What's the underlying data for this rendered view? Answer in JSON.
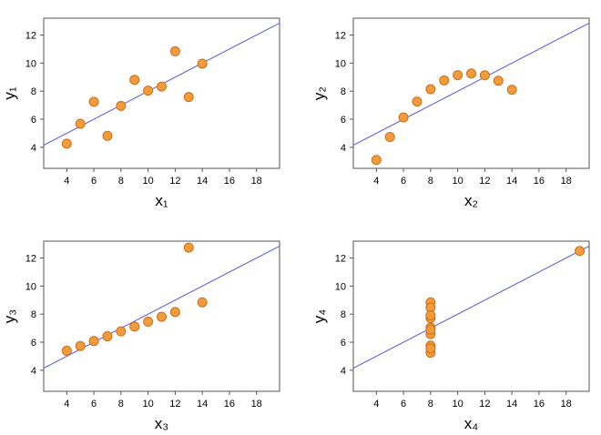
{
  "chart_data": [
    {
      "type": "scatter",
      "xlabel": "x₁",
      "ylabel": "y₁",
      "color": "#f39b3a",
      "x": [
        10,
        8,
        13,
        9,
        11,
        14,
        6,
        4,
        12,
        7,
        5
      ],
      "values": [
        8.04,
        6.95,
        7.58,
        8.81,
        8.33,
        9.96,
        7.24,
        4.26,
        10.84,
        4.82,
        5.68
      ],
      "xlim": [
        2.3,
        19.7
      ],
      "ylim": [
        2.5,
        13.2
      ],
      "xticks": [
        4,
        6,
        8,
        10,
        12,
        14,
        16,
        18
      ],
      "yticks": [
        4,
        6,
        8,
        10,
        12
      ],
      "fit_line": {
        "intercept": 3,
        "slope": 0.5,
        "color": "#5555dd"
      }
    },
    {
      "type": "scatter",
      "xlabel": "x₂",
      "ylabel": "y₂",
      "color": "#f39b3a",
      "x": [
        10,
        8,
        13,
        9,
        11,
        14,
        6,
        4,
        12,
        7,
        5
      ],
      "values": [
        9.14,
        8.14,
        8.74,
        8.77,
        9.26,
        8.1,
        6.13,
        3.1,
        9.13,
        7.26,
        4.74
      ],
      "xlim": [
        2.3,
        19.7
      ],
      "ylim": [
        2.5,
        13.2
      ],
      "xticks": [
        4,
        6,
        8,
        10,
        12,
        14,
        16,
        18
      ],
      "yticks": [
        4,
        6,
        8,
        10,
        12
      ],
      "fit_line": {
        "intercept": 3,
        "slope": 0.5,
        "color": "#5555dd"
      }
    },
    {
      "type": "scatter",
      "xlabel": "x₃",
      "ylabel": "y₃",
      "color": "#f39b3a",
      "x": [
        10,
        8,
        13,
        9,
        11,
        14,
        6,
        4,
        12,
        7,
        5
      ],
      "values": [
        7.46,
        6.77,
        12.74,
        7.11,
        7.81,
        8.84,
        6.08,
        5.39,
        8.15,
        6.42,
        5.73
      ],
      "xlim": [
        2.3,
        19.7
      ],
      "ylim": [
        2.5,
        13.2
      ],
      "xticks": [
        4,
        6,
        8,
        10,
        12,
        14,
        16,
        18
      ],
      "yticks": [
        4,
        6,
        8,
        10,
        12
      ],
      "fit_line": {
        "intercept": 3,
        "slope": 0.5,
        "color": "#5555dd"
      }
    },
    {
      "type": "scatter",
      "xlabel": "x₄",
      "ylabel": "y₄",
      "color": "#f39b3a",
      "x": [
        8,
        8,
        8,
        8,
        8,
        8,
        8,
        19,
        8,
        8,
        8
      ],
      "values": [
        6.58,
        5.76,
        7.71,
        8.84,
        8.47,
        7.04,
        5.25,
        12.5,
        5.56,
        7.91,
        6.89
      ],
      "xlim": [
        2.3,
        19.7
      ],
      "ylim": [
        2.5,
        13.2
      ],
      "xticks": [
        4,
        6,
        8,
        10,
        12,
        14,
        16,
        18
      ],
      "yticks": [
        4,
        6,
        8,
        10,
        12
      ],
      "fit_line": {
        "intercept": 3,
        "slope": 0.5,
        "color": "#5555dd"
      }
    }
  ]
}
